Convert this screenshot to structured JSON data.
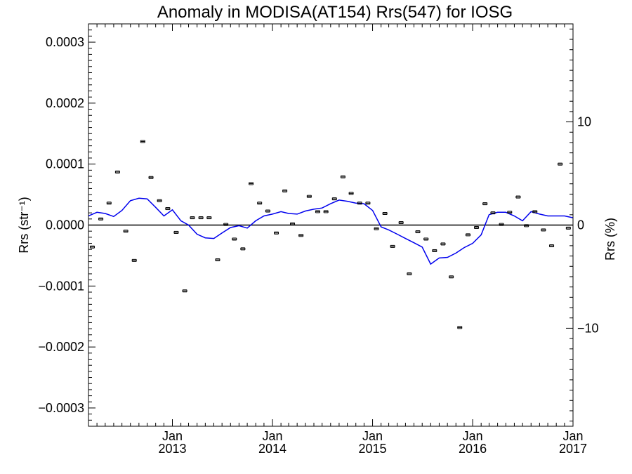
{
  "chart_data": {
    "type": "scatter",
    "title": "Anomaly in MODISA(AT154) Rrs(547) for IOSG",
    "ylabel": "Rrs (str⁻¹)",
    "ylabel_right": "Rrs (%)",
    "xlim": [
      "2012-03-01",
      "2017-01-01"
    ],
    "ylim": [
      -0.00033,
      0.00033
    ],
    "ylim_right": [
      -19.5,
      19.5
    ],
    "x_ticks": [
      {
        "date": "2013-01-01",
        "month": "Jan",
        "year": "2013"
      },
      {
        "date": "2014-01-01",
        "month": "Jan",
        "year": "2014"
      },
      {
        "date": "2015-01-01",
        "month": "Jan",
        "year": "2015"
      },
      {
        "date": "2016-01-01",
        "month": "Jan",
        "year": "2016"
      },
      {
        "date": "2017-01-01",
        "month": "Jan",
        "year": "2017"
      }
    ],
    "y_ticks": [
      {
        "value": 0.0003,
        "label": "0.0003"
      },
      {
        "value": 0.0002,
        "label": "0.0002"
      },
      {
        "value": 0.0001,
        "label": "0.0001"
      },
      {
        "value": 0.0,
        "label": "0.0000"
      },
      {
        "value": -0.0001,
        "label": "−0.0001"
      },
      {
        "value": -0.0002,
        "label": "−0.0002"
      },
      {
        "value": -0.0003,
        "label": "−0.0003"
      }
    ],
    "y_ticks_right": [
      {
        "value": 10,
        "label": "10"
      },
      {
        "value": 0,
        "label": "0"
      },
      {
        "value": -10,
        "label": "−10"
      }
    ],
    "series": [
      {
        "style": "points",
        "color": "#000000",
        "x": [
          "2012-03-15",
          "2012-04-15",
          "2012-05-15",
          "2012-06-15",
          "2012-07-15",
          "2012-08-15",
          "2012-09-15",
          "2012-10-15",
          "2012-11-15",
          "2012-12-15",
          "2013-01-15",
          "2013-02-15",
          "2013-03-15",
          "2013-04-15",
          "2013-05-15",
          "2013-06-15",
          "2013-07-15",
          "2013-08-15",
          "2013-09-15",
          "2013-10-15",
          "2013-11-15",
          "2013-12-15",
          "2014-01-15",
          "2014-02-15",
          "2014-03-15",
          "2014-04-15",
          "2014-05-15",
          "2014-06-15",
          "2014-07-15",
          "2014-08-15",
          "2014-09-15",
          "2014-10-15",
          "2014-11-15",
          "2014-12-15",
          "2015-01-15",
          "2015-02-15",
          "2015-03-15",
          "2015-04-15",
          "2015-05-15",
          "2015-06-15",
          "2015-07-15",
          "2015-08-15",
          "2015-09-15",
          "2015-10-15",
          "2015-11-15",
          "2015-12-15",
          "2016-01-15",
          "2016-02-15",
          "2016-03-15",
          "2016-04-15",
          "2016-05-15",
          "2016-06-15",
          "2016-07-15",
          "2016-08-15",
          "2016-09-15",
          "2016-10-15",
          "2016-11-15",
          "2016-12-15"
        ],
        "y": [
          -3.6e-05,
          1e-05,
          3.6e-05,
          8.7e-05,
          -1e-05,
          -5.8e-05,
          0.000137,
          7.8e-05,
          4e-05,
          2.7e-05,
          -1.2e-05,
          -0.000108,
          1.2e-05,
          1.2e-05,
          1.2e-05,
          -5.7e-05,
          1e-06,
          -2.3e-05,
          -3.9e-05,
          6.8e-05,
          3.6e-05,
          2.3e-05,
          -1.3e-05,
          5.6e-05,
          2e-06,
          -1.7e-05,
          4.7e-05,
          2.2e-05,
          2.2e-05,
          4.3e-05,
          7.9e-05,
          5.2e-05,
          3.6e-05,
          3.6e-05,
          -6e-06,
          1.9e-05,
          -3.5e-05,
          4e-06,
          -8e-05,
          -1.1e-05,
          -2.3e-05,
          -4.2e-05,
          -3.1e-05,
          -8.5e-05,
          -0.000168,
          -1.6e-05,
          -4e-06,
          3.5e-05,
          2e-05,
          1e-06,
          2.1e-05,
          4.6e-05,
          -1e-06,
          2.2e-05,
          -8e-06,
          -3.4e-05,
          0.0001,
          -5e-06
        ]
      },
      {
        "style": "line",
        "color": "#0000ee",
        "x": [
          "2012-03-01",
          "2012-04-01",
          "2012-05-01",
          "2012-06-01",
          "2012-07-01",
          "2012-08-01",
          "2012-09-01",
          "2012-10-01",
          "2012-11-01",
          "2012-12-01",
          "2013-01-01",
          "2013-02-01",
          "2013-03-01",
          "2013-04-01",
          "2013-05-01",
          "2013-06-01",
          "2013-07-01",
          "2013-08-01",
          "2013-09-01",
          "2013-10-01",
          "2013-11-01",
          "2013-12-01",
          "2014-01-01",
          "2014-02-01",
          "2014-03-01",
          "2014-04-01",
          "2014-05-01",
          "2014-06-01",
          "2014-07-01",
          "2014-08-01",
          "2014-09-01",
          "2014-10-01",
          "2014-11-01",
          "2014-12-01",
          "2015-01-01",
          "2015-02-01",
          "2015-03-01",
          "2015-04-01",
          "2015-05-01",
          "2015-06-01",
          "2015-07-01",
          "2015-08-01",
          "2015-09-01",
          "2015-10-01",
          "2015-11-01",
          "2015-12-01",
          "2016-01-01",
          "2016-02-01",
          "2016-03-01",
          "2016-04-01",
          "2016-05-01",
          "2016-06-01",
          "2016-07-01",
          "2016-08-01",
          "2016-09-01",
          "2016-10-01",
          "2016-11-01",
          "2016-12-01",
          "2017-01-01"
        ],
        "y": [
          1.5e-05,
          2.1e-05,
          1.9e-05,
          1.4e-05,
          2.4e-05,
          4e-05,
          4.4e-05,
          4.3e-05,
          2.9e-05,
          1.5e-05,
          2.5e-05,
          7e-06,
          0.0,
          -1.5e-05,
          -2.1e-05,
          -2.2e-05,
          -1.3e-05,
          -4e-06,
          -1e-06,
          -5e-06,
          7e-06,
          1.5e-05,
          1.8e-05,
          2.2e-05,
          1.9e-05,
          1.8e-05,
          2.3e-05,
          2.6e-05,
          2.8e-05,
          3.5e-05,
          4.1e-05,
          3.9e-05,
          3.6e-05,
          3.5e-05,
          2.4e-05,
          -3e-06,
          -8e-06,
          -1.5e-05,
          -2.2e-05,
          -2.9e-05,
          -3.6e-05,
          -6.4e-05,
          -5.4e-05,
          -5.3e-05,
          -4.6e-05,
          -3.7e-05,
          -3e-05,
          -1.6e-05,
          1.7e-05,
          2.1e-05,
          2.1e-05,
          1.5e-05,
          7e-06,
          2.2e-05,
          1.8e-05,
          1.5e-05,
          1.5e-05,
          1.5e-05,
          1.2e-05
        ]
      }
    ]
  }
}
